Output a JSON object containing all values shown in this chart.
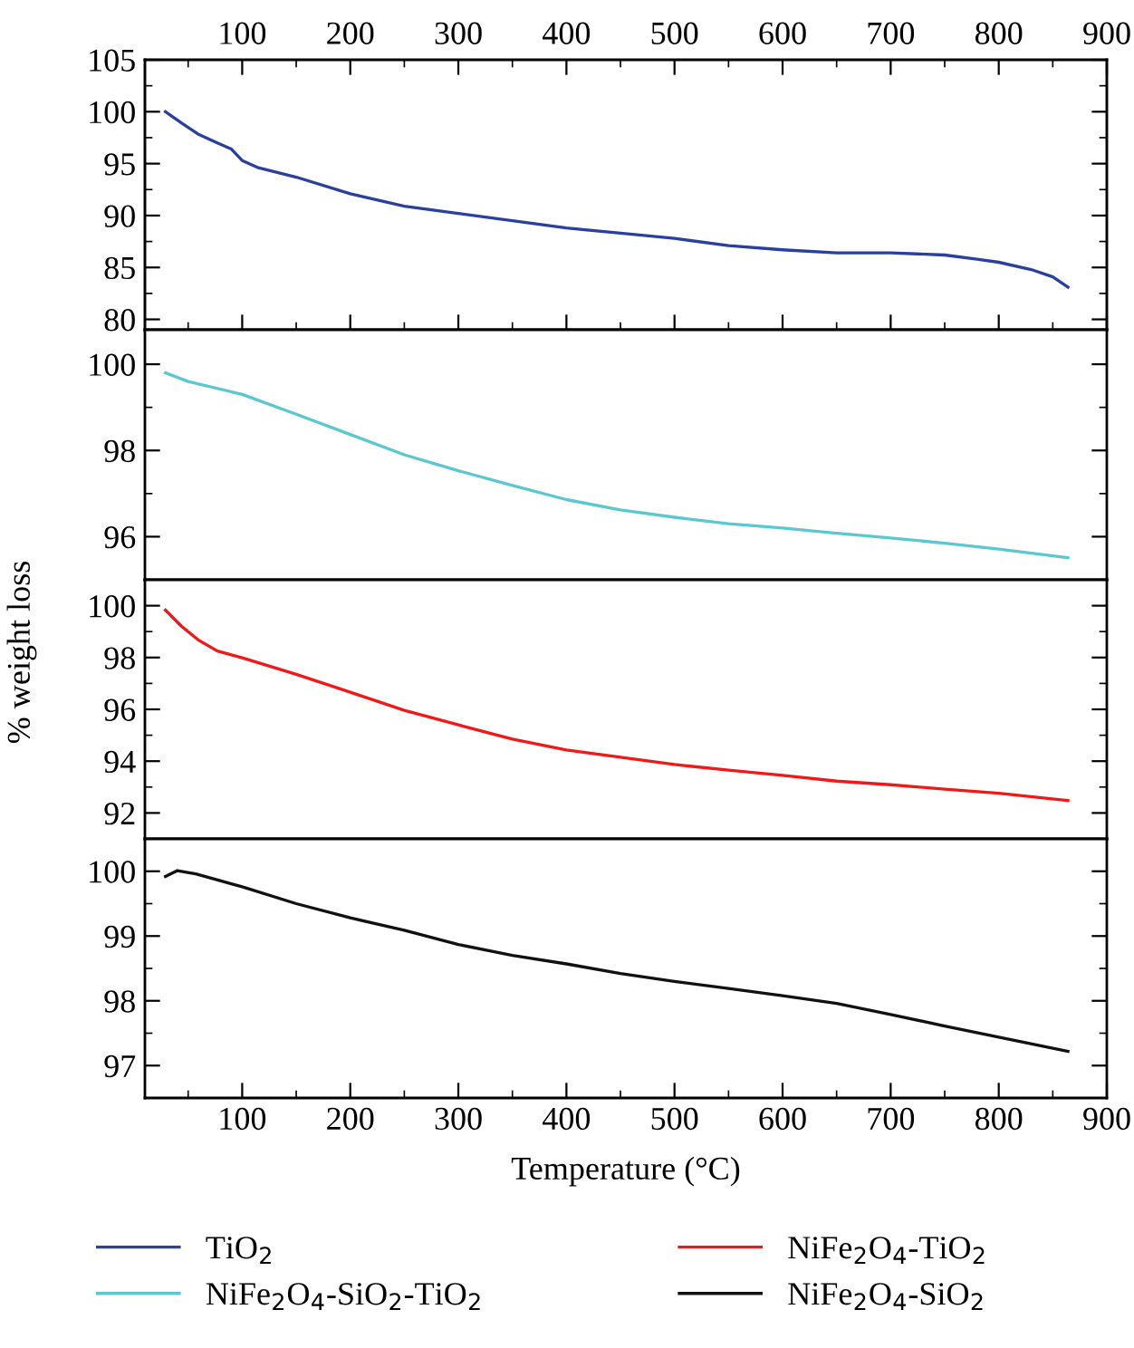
{
  "chart_data": [
    {
      "type": "line",
      "xlim": [
        10,
        900
      ],
      "xticks": [
        100,
        200,
        300,
        400,
        500,
        600,
        700,
        800,
        900
      ],
      "x2lim": [
        10,
        900
      ],
      "x2ticks": [
        100,
        200,
        300,
        400,
        500,
        600,
        700,
        800,
        900
      ],
      "ylim": [
        79,
        105
      ],
      "yticks": [
        80,
        85,
        90,
        95,
        100,
        105
      ],
      "tick_labels": "y",
      "legend": "bottom",
      "grid": false,
      "x": [
        29,
        44,
        60,
        77,
        90,
        100,
        115,
        150,
        200,
        250,
        300,
        350,
        400,
        450,
        500,
        550,
        600,
        650,
        700,
        750,
        780,
        800,
        830,
        850,
        864
      ],
      "series": [
        {
          "name": "TiO$_{2}$",
          "color": "#2a3f9e",
          "values": [
            100,
            98.9,
            97.8,
            97.0,
            96.4,
            95.3,
            94.6,
            93.7,
            92.1,
            90.9,
            90.2,
            89.5,
            88.8,
            88.3,
            87.8,
            87.1,
            86.7,
            86.4,
            86.4,
            86.2,
            85.8,
            85.5,
            84.8,
            84.1,
            83.1
          ]
        }
      ]
    },
    {
      "type": "line",
      "xlim": [
        10,
        900
      ],
      "ylim": [
        95,
        100.8
      ],
      "yticks": [
        96,
        98,
        100
      ],
      "tick_labels": "y",
      "legend": "bottom",
      "grid": false,
      "x": [
        29,
        50,
        100,
        150,
        200,
        250,
        300,
        350,
        400,
        450,
        500,
        550,
        600,
        650,
        700,
        750,
        800,
        864
      ],
      "series": [
        {
          "name": "NiFe$_{2}$O$_{4}$-SiO$_{2}$-TiO$_{2}$",
          "color": "#5bc8d0",
          "values": [
            99.8,
            99.6,
            99.3,
            98.84,
            98.37,
            97.9,
            97.53,
            97.19,
            96.86,
            96.62,
            96.45,
            96.3,
            96.2,
            96.08,
            95.97,
            95.85,
            95.71,
            95.51
          ]
        }
      ]
    },
    {
      "type": "line",
      "xlim": [
        10,
        900
      ],
      "ylim": [
        91,
        101
      ],
      "yticks": [
        92,
        94,
        96,
        98,
        100
      ],
      "tick_labels": "y",
      "legend": "bottom",
      "grid": false,
      "ylabel": "% weight loss",
      "x": [
        29,
        44,
        60,
        77,
        100,
        150,
        200,
        250,
        300,
        350,
        400,
        450,
        500,
        550,
        600,
        650,
        700,
        750,
        800,
        864
      ],
      "series": [
        {
          "name": "NiFe$_{2}$O$_{4}$-TiO$_{2}$",
          "color": "#f01818",
          "values": [
            99.83,
            99.2,
            98.66,
            98.25,
            97.99,
            97.35,
            96.66,
            95.96,
            95.4,
            94.85,
            94.43,
            94.15,
            93.87,
            93.65,
            93.45,
            93.23,
            93.09,
            92.92,
            92.76,
            92.48
          ]
        }
      ]
    },
    {
      "type": "line",
      "xlim": [
        10,
        900
      ],
      "xticks": [
        100,
        200,
        300,
        400,
        500,
        600,
        700,
        800,
        900
      ],
      "ylim": [
        96.5,
        100.5
      ],
      "yticks": [
        97,
        98,
        99,
        100
      ],
      "legend": "bottom",
      "grid": false,
      "xlabel": "Temperature (°C)",
      "x": [
        29,
        40,
        57,
        100,
        150,
        200,
        250,
        300,
        350,
        400,
        450,
        500,
        550,
        600,
        650,
        700,
        750,
        800,
        864
      ],
      "series": [
        {
          "name": "NiFe$_{2}$O$_{4}$-SiO$_{2}$",
          "color": "#111111",
          "values": [
            99.92,
            100.01,
            99.96,
            99.76,
            99.5,
            99.28,
            99.09,
            98.87,
            98.7,
            98.57,
            98.42,
            98.3,
            98.19,
            98.08,
            97.96,
            97.79,
            97.61,
            97.44,
            97.22
          ]
        }
      ]
    }
  ]
}
